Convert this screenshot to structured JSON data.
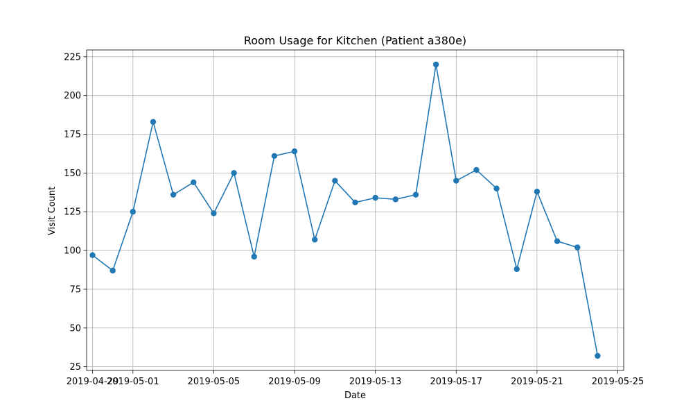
{
  "chart_data": {
    "type": "line",
    "title": "Room Usage for Kitchen (Patient a380e)",
    "xlabel": "Date",
    "ylabel": "Visit Count",
    "ylim": [
      22.6,
      229.4
    ],
    "xlim": [
      "2019-04-28T17:00",
      "2019-05-25T07:00"
    ],
    "grid": true,
    "x_ticks": [
      "2019-04-29",
      "2019-05-01",
      "2019-05-05",
      "2019-05-09",
      "2019-05-13",
      "2019-05-17",
      "2019-05-21",
      "2019-05-25"
    ],
    "y_ticks": [
      25,
      50,
      75,
      100,
      125,
      150,
      175,
      200,
      225
    ],
    "series": [
      {
        "color": "#1f77b4",
        "marker": "circle",
        "points": [
          {
            "x": "2019-04-29",
            "y": 97
          },
          {
            "x": "2019-04-30",
            "y": 87
          },
          {
            "x": "2019-05-01",
            "y": 125
          },
          {
            "x": "2019-05-02",
            "y": 183
          },
          {
            "x": "2019-05-03",
            "y": 136
          },
          {
            "x": "2019-05-04",
            "y": 144
          },
          {
            "x": "2019-05-05",
            "y": 124
          },
          {
            "x": "2019-05-06",
            "y": 150
          },
          {
            "x": "2019-05-07",
            "y": 96
          },
          {
            "x": "2019-05-08",
            "y": 161
          },
          {
            "x": "2019-05-09",
            "y": 164
          },
          {
            "x": "2019-05-10",
            "y": 107
          },
          {
            "x": "2019-05-11",
            "y": 145
          },
          {
            "x": "2019-05-12",
            "y": 131
          },
          {
            "x": "2019-05-13",
            "y": 134
          },
          {
            "x": "2019-05-14",
            "y": 133
          },
          {
            "x": "2019-05-15",
            "y": 136
          },
          {
            "x": "2019-05-16",
            "y": 220
          },
          {
            "x": "2019-05-17",
            "y": 145
          },
          {
            "x": "2019-05-18",
            "y": 152
          },
          {
            "x": "2019-05-19",
            "y": 140
          },
          {
            "x": "2019-05-20",
            "y": 88
          },
          {
            "x": "2019-05-21",
            "y": 138
          },
          {
            "x": "2019-05-22",
            "y": 106
          },
          {
            "x": "2019-05-23",
            "y": 102
          },
          {
            "x": "2019-05-24",
            "y": 32
          }
        ]
      }
    ]
  }
}
